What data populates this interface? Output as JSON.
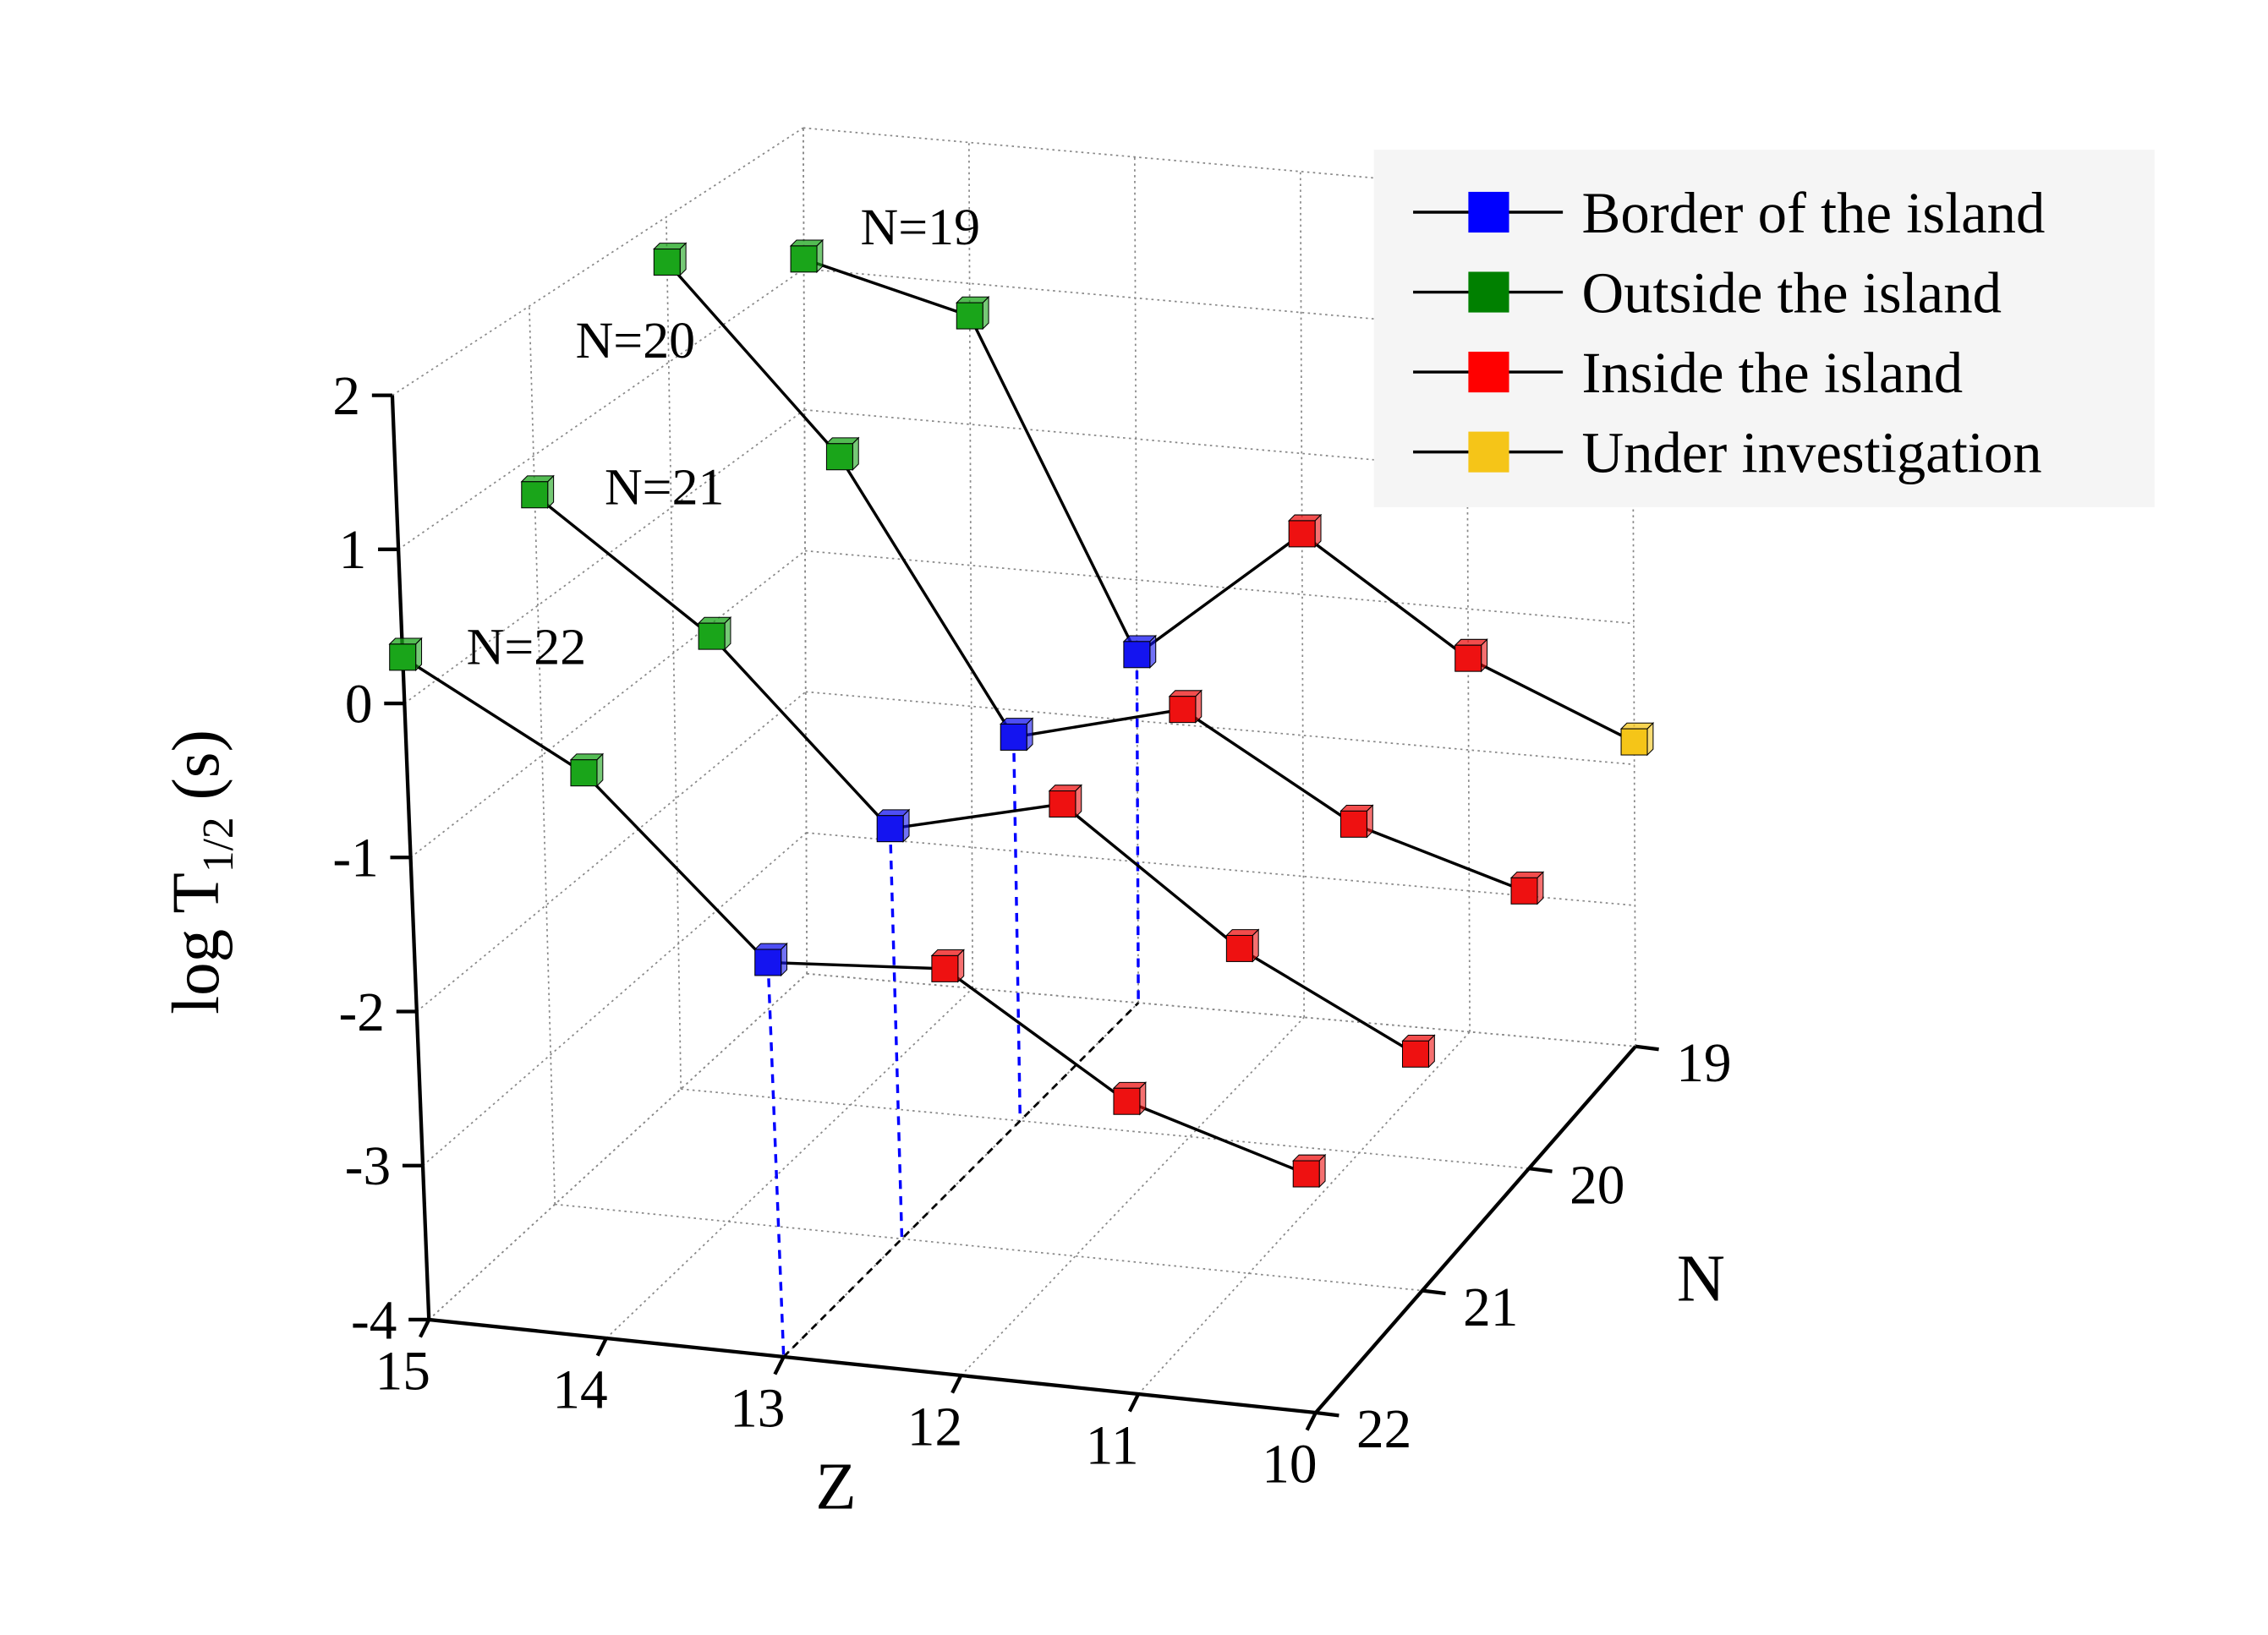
{
  "chart_data": {
    "type": "scatter",
    "projection": "3d",
    "xlabel": "Z",
    "ylabel": "N",
    "zlabel_main": "log T",
    "zlabel_sub": "1/2",
    "zlabel_unit": " (s)",
    "z_ticks": [
      "15",
      "14",
      "13",
      "12",
      "11",
      "10"
    ],
    "n_ticks": [
      "19",
      "20",
      "21",
      "22"
    ],
    "log_ticks": [
      "2",
      "1",
      "0",
      "-1",
      "-2",
      "-3",
      "-4"
    ],
    "xlim": [
      15,
      10
    ],
    "ylim": [
      22,
      19
    ],
    "zlim": [
      -4,
      2
    ],
    "grid": true,
    "legend_position": "top-right",
    "legend": [
      {
        "label": "Border of the island",
        "category": "border"
      },
      {
        "label": "Outside the island",
        "category": "outside"
      },
      {
        "label": "Inside the island",
        "category": "inside"
      },
      {
        "label": "Under investigation",
        "category": "investigation"
      }
    ],
    "colors": {
      "border": "#0000ff",
      "outside": "#008000",
      "inside": "#ff0000",
      "investigation": "#f5c518"
    },
    "marker_colors": {
      "border": "#1414f0",
      "outside": "#1aa51a",
      "inside": "#ee1111",
      "investigation": "#f5c518"
    },
    "series": [
      {
        "name": "N=19",
        "N": 19,
        "points": [
          {
            "Z": 15,
            "logT": 1.07,
            "category": "outside"
          },
          {
            "Z": 14,
            "logT": 0.77,
            "category": "outside"
          },
          {
            "Z": 13,
            "logT": -1.53,
            "category": "border"
          },
          {
            "Z": 12,
            "logT": -0.57,
            "category": "inside"
          },
          {
            "Z": 11,
            "logT": -1.35,
            "category": "inside"
          },
          {
            "Z": 10,
            "logT": -1.84,
            "category": "investigation"
          }
        ]
      },
      {
        "name": "N=20",
        "N": 20,
        "points": [
          {
            "Z": 15,
            "logT": 1.69,
            "category": "outside"
          },
          {
            "Z": 14,
            "logT": 0.46,
            "category": "outside"
          },
          {
            "Z": 13,
            "logT": -1.36,
            "category": "border"
          },
          {
            "Z": 12,
            "logT": -1.06,
            "category": "inside"
          },
          {
            "Z": 11,
            "logT": -1.74,
            "category": "inside"
          },
          {
            "Z": 10,
            "logT": -2.09,
            "category": "inside"
          }
        ]
      },
      {
        "name": "N=21",
        "N": 21,
        "points": [
          {
            "Z": 15,
            "logT": 0.74,
            "category": "outside"
          },
          {
            "Z": 14,
            "logT": -0.09,
            "category": "outside"
          },
          {
            "Z": 13,
            "logT": -1.26,
            "category": "border"
          },
          {
            "Z": 12,
            "logT": -0.98,
            "category": "inside"
          },
          {
            "Z": 11,
            "logT": -1.83,
            "category": "inside"
          },
          {
            "Z": 10,
            "logT": -2.42,
            "category": "inside"
          }
        ]
      },
      {
        "name": "N=22",
        "N": 22,
        "points": [
          {
            "Z": 15,
            "logT": 0.3,
            "category": "outside"
          },
          {
            "Z": 14,
            "logT": -0.33,
            "category": "outside"
          },
          {
            "Z": 13,
            "logT": -1.44,
            "category": "border"
          },
          {
            "Z": 12,
            "logT": -1.36,
            "category": "inside"
          },
          {
            "Z": 11,
            "logT": -2.1,
            "category": "inside"
          },
          {
            "Z": 10,
            "logT": -2.45,
            "category": "inside"
          }
        ]
      }
    ]
  }
}
